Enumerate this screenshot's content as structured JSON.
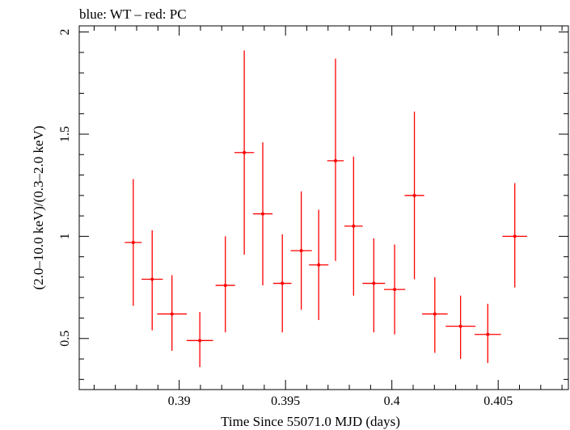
{
  "chart_data": {
    "type": "scatter",
    "title": "blue: WT – red: PC",
    "xlabel": "Time Since 55071.0 MJD (days)",
    "ylabel": "(2.0–10.0 keV)/(0.3–2.0 keV)",
    "xlim": [
      0.3853,
      0.4083
    ],
    "ylim": [
      0.25,
      2.03
    ],
    "xticks": [
      0.39,
      0.395,
      0.4,
      0.405
    ],
    "xtick_labels": [
      "0.39",
      "0.395",
      "0.4",
      "0.405"
    ],
    "yticks": [
      0.5,
      1,
      1.5,
      2
    ],
    "ytick_labels": [
      "0.5",
      "1",
      "1.5",
      "2"
    ],
    "grid": false,
    "legend": "none",
    "series": [
      {
        "color": "#ff0000",
        "points": [
          {
            "x": 0.38784,
            "xerr": 0.0004,
            "y": 0.97,
            "ylo": 0.66,
            "yhi": 1.28
          },
          {
            "x": 0.38873,
            "xerr": 0.0005,
            "y": 0.79,
            "ylo": 0.54,
            "yhi": 1.03
          },
          {
            "x": 0.38966,
            "xerr": 0.0007,
            "y": 0.62,
            "ylo": 0.44,
            "yhi": 0.81
          },
          {
            "x": 0.39097,
            "xerr": 0.00062,
            "y": 0.49,
            "ylo": 0.36,
            "yhi": 0.63
          },
          {
            "x": 0.39217,
            "xerr": 0.00046,
            "y": 0.76,
            "ylo": 0.53,
            "yhi": 1.0
          },
          {
            "x": 0.39306,
            "xerr": 0.00046,
            "y": 1.41,
            "ylo": 0.91,
            "yhi": 1.91
          },
          {
            "x": 0.39393,
            "xerr": 0.00046,
            "y": 1.11,
            "ylo": 0.76,
            "yhi": 1.46
          },
          {
            "x": 0.39485,
            "xerr": 0.00043,
            "y": 0.77,
            "ylo": 0.53,
            "yhi": 1.01
          },
          {
            "x": 0.39574,
            "xerr": 0.0005,
            "y": 0.93,
            "ylo": 0.64,
            "yhi": 1.22
          },
          {
            "x": 0.39656,
            "xerr": 0.00046,
            "y": 0.86,
            "ylo": 0.59,
            "yhi": 1.13
          },
          {
            "x": 0.39735,
            "xerr": 0.00039,
            "y": 1.37,
            "ylo": 0.88,
            "yhi": 1.87
          },
          {
            "x": 0.3982,
            "xerr": 0.00043,
            "y": 1.05,
            "ylo": 0.71,
            "yhi": 1.39
          },
          {
            "x": 0.39915,
            "xerr": 0.00053,
            "y": 0.77,
            "ylo": 0.53,
            "yhi": 0.99
          },
          {
            "x": 0.40013,
            "xerr": 0.0005,
            "y": 0.74,
            "ylo": 0.52,
            "yhi": 0.96
          },
          {
            "x": 0.40106,
            "xerr": 0.00046,
            "y": 1.2,
            "ylo": 0.79,
            "yhi": 1.61
          },
          {
            "x": 0.40202,
            "xerr": 0.0006,
            "y": 0.62,
            "ylo": 0.43,
            "yhi": 0.8
          },
          {
            "x": 0.40323,
            "xerr": 0.0007,
            "y": 0.56,
            "ylo": 0.4,
            "yhi": 0.71
          },
          {
            "x": 0.40451,
            "xerr": 0.00062,
            "y": 0.52,
            "ylo": 0.38,
            "yhi": 0.67
          },
          {
            "x": 0.40578,
            "xerr": 0.00058,
            "y": 1.0,
            "ylo": 0.75,
            "yhi": 1.26
          }
        ]
      }
    ]
  }
}
